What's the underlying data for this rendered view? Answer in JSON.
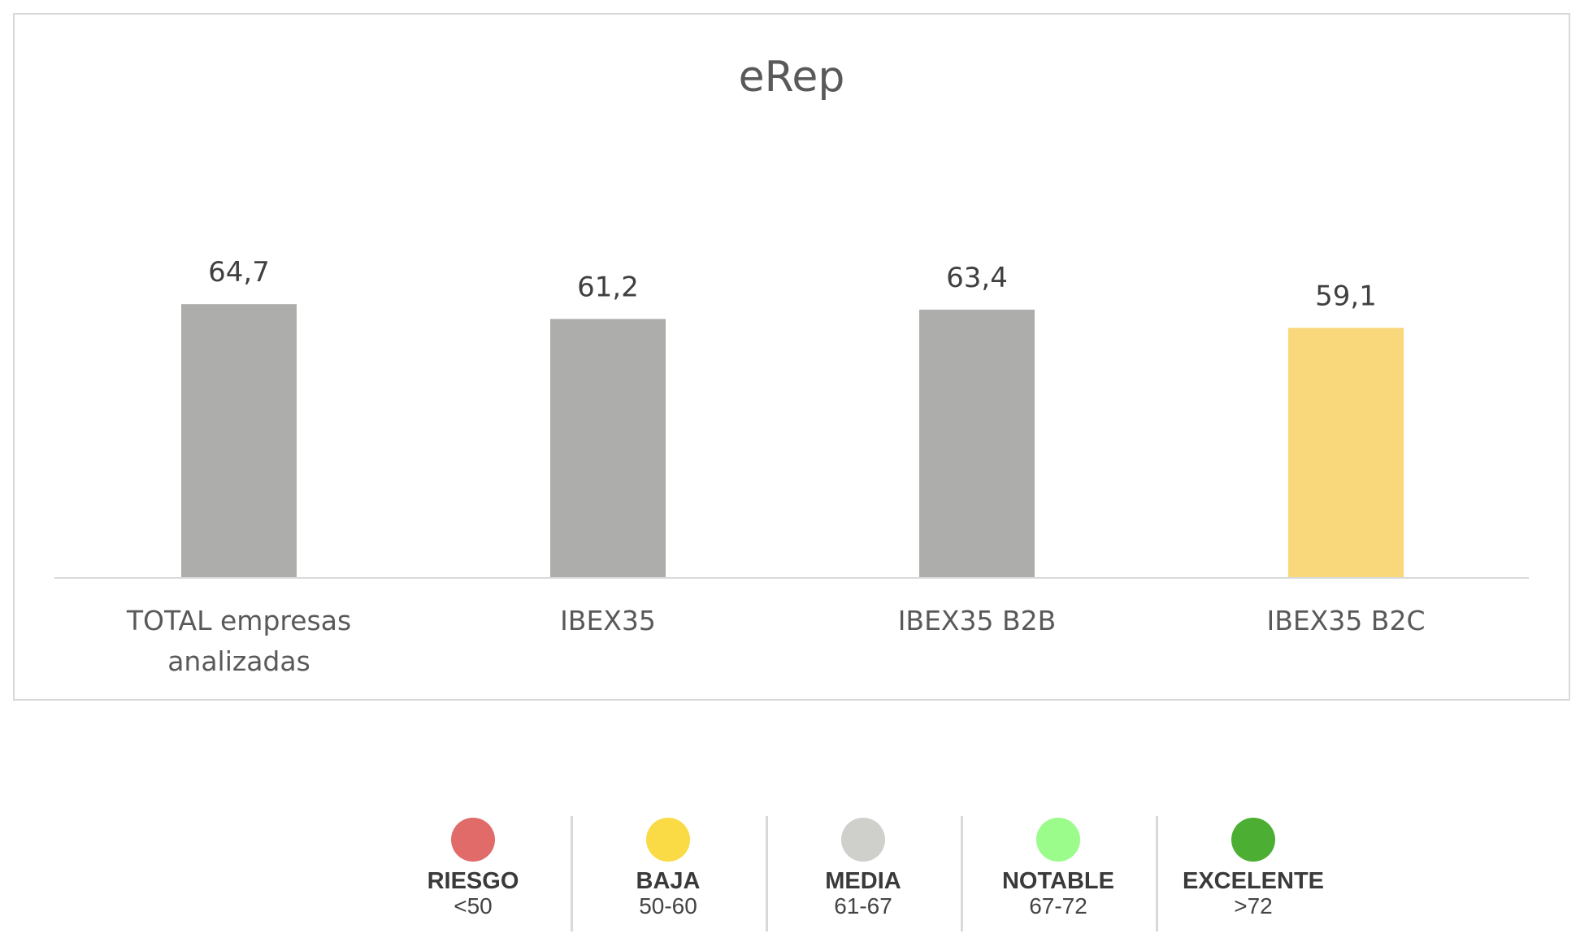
{
  "chart_data": {
    "type": "bar",
    "title": "eRep",
    "categories": [
      [
        "TOTAL empresas",
        "analizadas"
      ],
      [
        "IBEX35"
      ],
      [
        "IBEX35 B2B"
      ],
      [
        "IBEX35 B2C"
      ]
    ],
    "values": [
      64.7,
      61.2,
      63.4,
      59.1
    ],
    "value_labels": [
      "64,7",
      "61,2",
      "63,4",
      "59,1"
    ],
    "bar_colors": [
      "#adadab",
      "#adadab",
      "#adadab",
      "#f8d87a"
    ],
    "ylim": [
      0,
      100
    ],
    "grid": false,
    "legend": "none"
  },
  "legend": {
    "items": [
      {
        "name": "RIESGO",
        "range": "<50",
        "color": "#e06b69"
      },
      {
        "name": "BAJA",
        "range": "50-60",
        "color": "#fadb45"
      },
      {
        "name": "MEDIA",
        "range": "61-67",
        "color": "#cfcfcb"
      },
      {
        "name": "NOTABLE",
        "range": "67-72",
        "color": "#9bfc8c"
      },
      {
        "name": "EXCELENTE",
        "range": ">72",
        "color": "#4cae32"
      }
    ]
  }
}
